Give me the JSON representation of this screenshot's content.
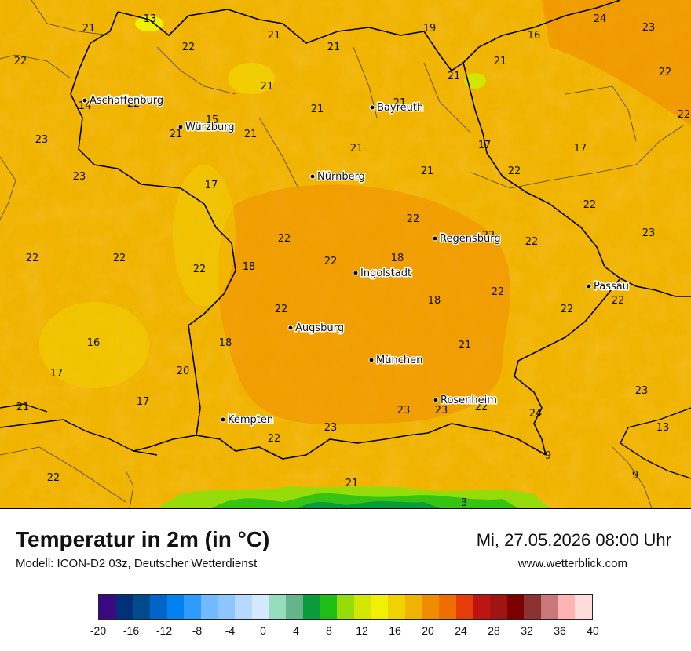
{
  "map": {
    "cities": [
      {
        "name": "Aschaffenburg"
      },
      {
        "name": "Würzburg"
      },
      {
        "name": "Bayreuth"
      },
      {
        "name": "Nürnberg"
      },
      {
        "name": "Regensburg"
      },
      {
        "name": "Ingolstadt"
      },
      {
        "name": "Passau"
      },
      {
        "name": "Augsburg"
      },
      {
        "name": "München"
      },
      {
        "name": "Rosenheim"
      },
      {
        "name": "Kempten"
      }
    ],
    "values": [
      "21",
      "13",
      "21",
      "21",
      "19",
      "16",
      "24",
      "23",
      "22",
      "22",
      "21",
      "21",
      "21",
      "22",
      "14",
      "22",
      "21",
      "21",
      "22",
      "15",
      "21",
      "21",
      "17",
      "23",
      "23",
      "21",
      "17",
      "21",
      "17",
      "22",
      "22",
      "22",
      "22",
      "22",
      "23",
      "22",
      "22",
      "22",
      "18",
      "22",
      "22",
      "22",
      "22",
      "18",
      "22",
      "22",
      "16",
      "18",
      "18",
      "21",
      "17",
      "20",
      "17",
      "24",
      "21",
      "23",
      "23",
      "13",
      "23",
      "22",
      "9",
      "9",
      "22",
      "22",
      "23",
      "21",
      "3"
    ]
  },
  "footer": {
    "title": "Temperatur in 2m (in °C)",
    "subtitle": "Modell: ICON-D2 03z, Deutscher Wetterdienst",
    "datetime": "Mi, 27.05.2026 08:00 Uhr",
    "website": "www.wetterblick.com"
  },
  "legend": {
    "tick_labels": [
      "-20",
      "-16",
      "-12",
      "-8",
      "-4",
      "0",
      "4",
      "8",
      "12",
      "16",
      "20",
      "24",
      "28",
      "32",
      "36",
      "40"
    ],
    "colors": [
      "#3a0a82",
      "#00307a",
      "#004a8e",
      "#0064c8",
      "#0082f0",
      "#2e9bff",
      "#73b9ff",
      "#8cc5ff",
      "#b4d8ff",
      "#d4e8ff",
      "#96dcbe",
      "#66b48c",
      "#0a9c3c",
      "#1ebe14",
      "#96dc0a",
      "#d2e600",
      "#f0f000",
      "#f0d200",
      "#f0b400",
      "#f08c00",
      "#f06e00",
      "#e63c0a",
      "#be1414",
      "#a01414",
      "#7d0000",
      "#8c3232",
      "#c87878",
      "#ffb4b4",
      "#ffdcdc"
    ]
  }
}
